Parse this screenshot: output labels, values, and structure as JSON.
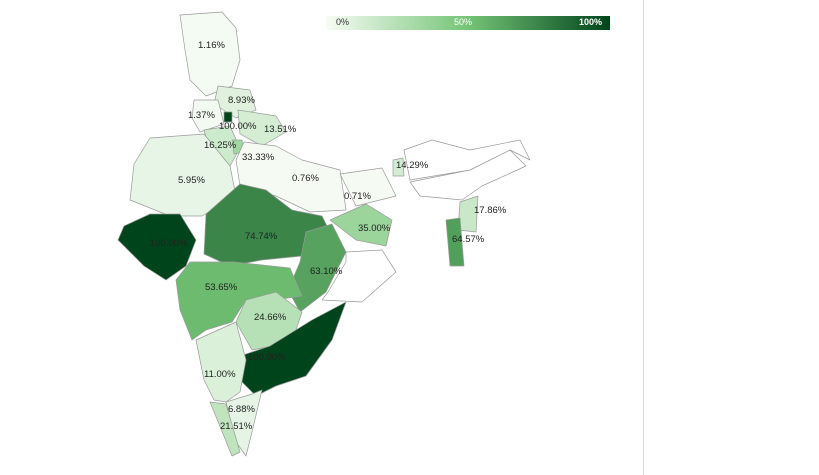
{
  "legend": {
    "min_label": "0%",
    "mid_label": "50%",
    "max_label": "100%",
    "color_min": "#f7fcf5",
    "color_mid": "#74c476",
    "color_max": "#00441b"
  },
  "regions": [
    {
      "label": "1.16%",
      "value": 1.16
    },
    {
      "label": "8.93%",
      "value": 8.93
    },
    {
      "label": "1.37%",
      "value": 1.37
    },
    {
      "label": "100.00%",
      "value": 100.0
    },
    {
      "label": "13.51%",
      "value": 13.51
    },
    {
      "label": "16.25%",
      "value": 16.25
    },
    {
      "label": "33.33%",
      "value": 33.33
    },
    {
      "label": "5.95%",
      "value": 5.95
    },
    {
      "label": "0.76%",
      "value": 0.76
    },
    {
      "label": "0.71%",
      "value": 0.71
    },
    {
      "label": "14.29%",
      "value": 14.29
    },
    {
      "label": "100.00%",
      "value": 100.0
    },
    {
      "label": "74.74%",
      "value": 74.74
    },
    {
      "label": "35.00%",
      "value": 35.0
    },
    {
      "label": "63.10%",
      "value": 63.1
    },
    {
      "label": "53.65%",
      "value": 53.65
    },
    {
      "label": "24.66%",
      "value": 24.66
    },
    {
      "label": "100.00%",
      "value": 100.0
    },
    {
      "label": "11.00%",
      "value": 11.0
    },
    {
      "label": "6.88%",
      "value": 6.88
    },
    {
      "label": "21.51%",
      "value": 21.51
    },
    {
      "label": "17.86%",
      "value": 17.86
    },
    {
      "label": "64.57%",
      "value": 64.57
    }
  ]
}
